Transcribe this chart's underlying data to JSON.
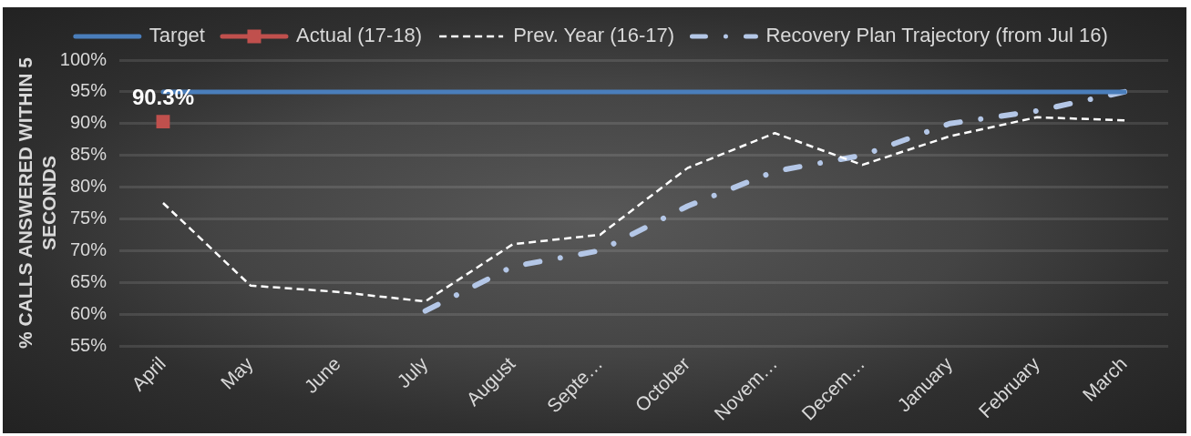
{
  "chart_data": {
    "type": "line",
    "ylabel": "% CALLS ANSWERED WITHIN 5 SECONDS",
    "categories": [
      "April",
      "May",
      "June",
      "July",
      "August",
      "Septe…",
      "October",
      "Novem…",
      "Decem…",
      "January",
      "February",
      "March"
    ],
    "series": [
      {
        "name": "Target",
        "color": "#4a7ebb",
        "line_style": "solid",
        "marker": "none",
        "values": [
          95,
          95,
          95,
          95,
          95,
          95,
          95,
          95,
          95,
          95,
          95,
          95
        ]
      },
      {
        "name": "Actual (17-18)",
        "color": "#c0504d",
        "line_style": "solid",
        "marker": "square",
        "values": [
          90.3,
          null,
          null,
          null,
          null,
          null,
          null,
          null,
          null,
          null,
          null,
          null
        ],
        "value_labels": [
          "90.3%",
          null,
          null,
          null,
          null,
          null,
          null,
          null,
          null,
          null,
          null,
          null
        ]
      },
      {
        "name": "Prev. Year (16-17)",
        "color": "#ffffff",
        "line_style": "dashed",
        "marker": "none",
        "values": [
          77.5,
          64.5,
          63.5,
          62,
          71,
          72.5,
          83,
          88.5,
          83.5,
          88,
          91,
          90.5
        ]
      },
      {
        "name": "Recovery Plan Trajectory (from Jul 16)",
        "color": "#b4c7e7",
        "line_style": "dashdot",
        "marker": "none",
        "values": [
          null,
          null,
          null,
          60.5,
          67.5,
          70,
          77,
          82.5,
          85,
          90,
          92,
          95
        ]
      }
    ],
    "ylim": [
      55,
      100
    ],
    "yticks": [
      {
        "value": 55,
        "label": "55%"
      },
      {
        "value": 60,
        "label": "60%"
      },
      {
        "value": 65,
        "label": "65%"
      },
      {
        "value": 70,
        "label": "70%"
      },
      {
        "value": 75,
        "label": "75%"
      },
      {
        "value": 80,
        "label": "80%"
      },
      {
        "value": 85,
        "label": "85%"
      },
      {
        "value": 90,
        "label": "90%"
      },
      {
        "value": 95,
        "label": "95%"
      },
      {
        "value": 100,
        "label": "100%"
      }
    ],
    "grid": "y",
    "legend": "top"
  }
}
